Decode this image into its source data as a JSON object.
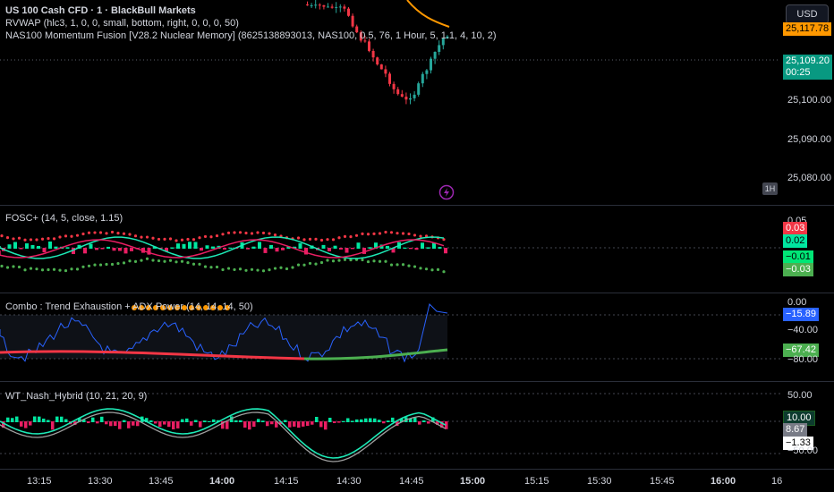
{
  "header": {
    "title": "US 100 Cash CFD · 1 · BlackBull Markets",
    "ind1": "RVWAP (hlc3, 1, 0, 0, small, bottom, right, 0, 0, 0, 50)",
    "ind2": "NAS100 Momentum Fusion [V28.2 Nuclear Memory] (8625138893013, NAS100, 0.5, 76, 1 Hour, 5, 1.1, 4, 10, 2)"
  },
  "currency": "USD",
  "timeframe_badge": "1H",
  "icons": {
    "alert": "lightning-icon"
  },
  "price_pane": {
    "ticks": [
      "25,100.00",
      "25,090.00",
      "25,080.00"
    ],
    "rvwap_label": "25,117.78",
    "price_label": "25,109.20",
    "countdown": "00:25",
    "colors": {
      "up": "#26a69a",
      "down": "#f23645",
      "rvwap": "#ff9800",
      "price_label": "#089981"
    }
  },
  "fosc_pane": {
    "legend": "FOSC+ (14, 5, close, 1.15)",
    "tick_top": "0.05",
    "labels": [
      "0.03",
      "0.02",
      "−0.01",
      "−0.03"
    ],
    "label_colors": [
      "#f23645",
      "#22ab94",
      "#00e6a0",
      "#4caf50"
    ]
  },
  "combo_pane": {
    "legend": "Combo : Trend Exhaustion + ADX Power (14, 14, 14, 50)",
    "ticks": [
      "0.00",
      "−40.00",
      "−80.00"
    ],
    "labels": [
      "−15.89",
      "−67.42"
    ],
    "label_colors": [
      "#2962ff",
      "#4caf50"
    ]
  },
  "wt_pane": {
    "legend": "WT_Nash_Hybrid (10, 21, 20, 9)",
    "ticks": [
      "50.00",
      "−50.00"
    ],
    "labels": [
      "10.00",
      "8.67",
      "−1.33"
    ]
  },
  "time_axis": [
    "13:15",
    "13:30",
    "13:45",
    "14:00",
    "14:15",
    "14:30",
    "14:45",
    "15:00",
    "15:15",
    "15:30",
    "15:45",
    "16:00",
    "16"
  ]
}
